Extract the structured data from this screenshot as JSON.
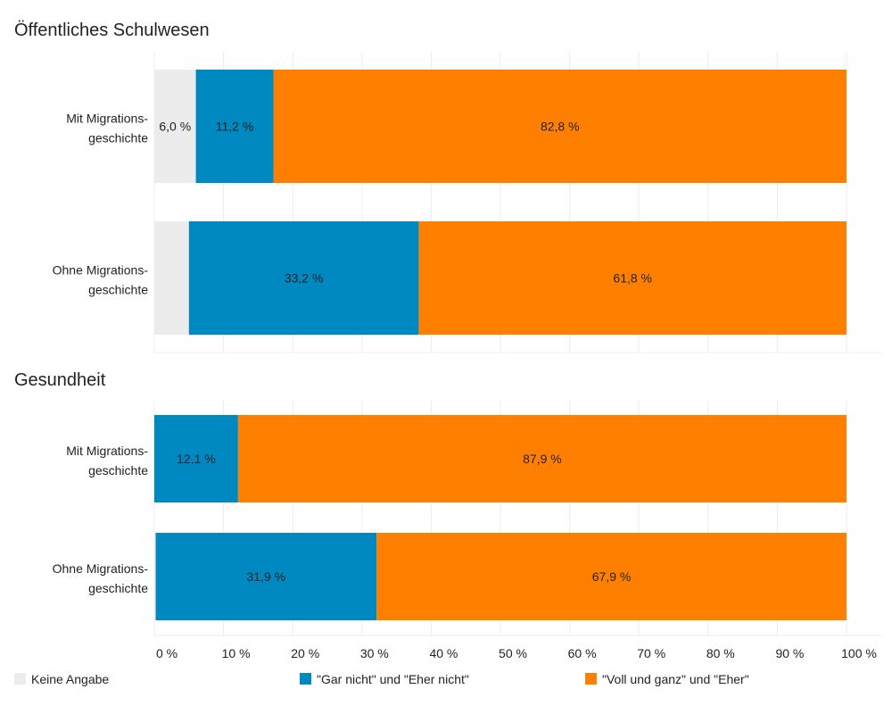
{
  "chart_data": [
    {
      "type": "bar",
      "orientation": "horizontal",
      "stacked": true,
      "title": "Öffentliches Schulwesen",
      "categories": [
        [
          "Mit Migrations-",
          "geschichte"
        ],
        [
          "Ohne Migrations-",
          "geschichte"
        ]
      ],
      "series": [
        {
          "name": "Keine Angabe",
          "color": "#ececec",
          "values": [
            6.0,
            5.0
          ],
          "labels": [
            "6,0 %",
            ""
          ]
        },
        {
          "name": "\"Gar nicht\" und \"Eher nicht\"",
          "color": "#0088c0",
          "values": [
            11.2,
            33.2
          ],
          "labels": [
            "11,2 %",
            "33,2 %"
          ]
        },
        {
          "name": "\"Voll und ganz\" und \"Eher\"",
          "color": "#ff8000",
          "values": [
            82.8,
            61.8
          ],
          "labels": [
            "82,8 %",
            "61,8 %"
          ]
        }
      ],
      "xlim": [
        0,
        100
      ],
      "grid": true
    },
    {
      "type": "bar",
      "orientation": "horizontal",
      "stacked": true,
      "title": "Gesundheit",
      "categories": [
        [
          "Mit Migrations-",
          "geschichte"
        ],
        [
          "Ohne Migrations-",
          "geschichte"
        ]
      ],
      "series": [
        {
          "name": "Keine Angabe",
          "color": "#ececec",
          "values": [
            0.0,
            0.2
          ],
          "labels": [
            "",
            ""
          ]
        },
        {
          "name": "\"Gar nicht\" und \"Eher nicht\"",
          "color": "#0088c0",
          "values": [
            12.1,
            31.9
          ],
          "labels": [
            "12,1 %",
            "31,9 %"
          ]
        },
        {
          "name": "\"Voll und ganz\" und \"Eher\"",
          "color": "#ff8000",
          "values": [
            87.9,
            67.9
          ],
          "labels": [
            "87,9 %",
            "67,9 %"
          ]
        }
      ],
      "xlim": [
        0,
        100
      ],
      "grid": true
    }
  ],
  "x_ticks": [
    "0 %",
    "10 %",
    "20 %",
    "30 %",
    "40 %",
    "50 %",
    "60 %",
    "70 %",
    "80 %",
    "90 %",
    "100 %"
  ],
  "legend": {
    "placement": "bottom",
    "items": [
      {
        "label": "Keine Angabe",
        "color": "#ececec"
      },
      {
        "label": "\"Gar nicht\" und \"Eher nicht\"",
        "color": "#0088c0"
      },
      {
        "label": "\"Voll und ganz\" und \"Eher\"",
        "color": "#ff8000"
      }
    ]
  }
}
